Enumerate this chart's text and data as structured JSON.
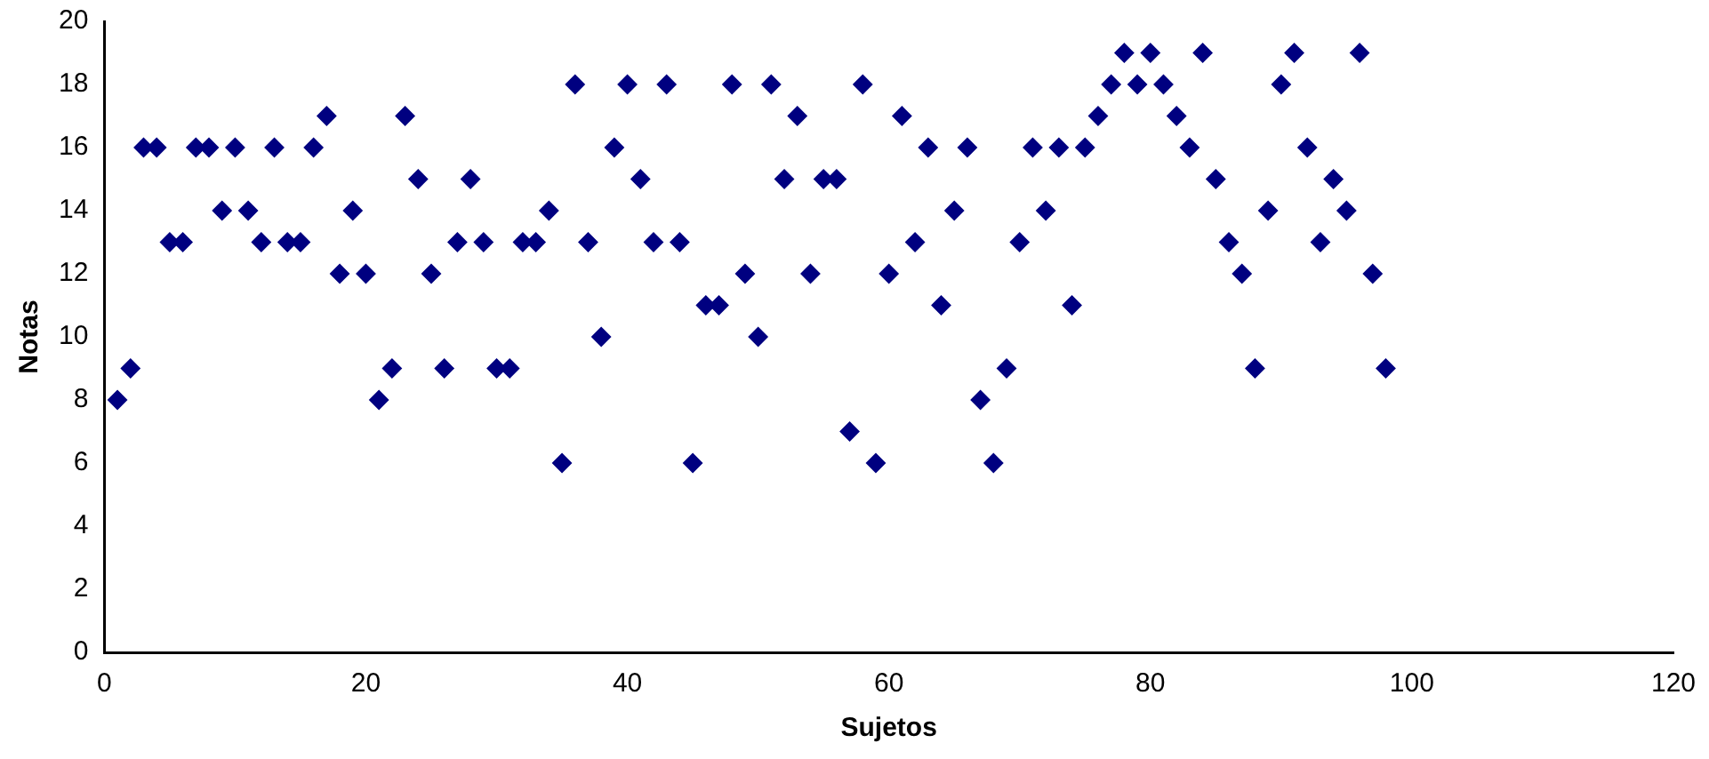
{
  "chart_data": {
    "type": "scatter",
    "xlabel": "Sujetos",
    "ylabel": "Notas",
    "marker": "diamond",
    "grid": false,
    "legend": false,
    "xlim": [
      0,
      120
    ],
    "xticks": [
      0,
      20,
      40,
      60,
      80,
      100,
      120
    ],
    "ylim": [
      0,
      20
    ],
    "yticks": [
      0,
      2,
      4,
      6,
      8,
      10,
      12,
      14,
      16,
      18,
      20
    ],
    "series": [
      {
        "color": "#000080",
        "x": [
          1,
          2,
          3,
          4,
          5,
          6,
          7,
          8,
          9,
          10,
          11,
          12,
          13,
          14,
          15,
          16,
          17,
          18,
          19,
          20,
          21,
          22,
          23,
          24,
          25,
          26,
          27,
          28,
          29,
          30,
          31,
          32,
          33,
          34,
          35,
          36,
          37,
          38,
          39,
          40,
          41,
          42,
          43,
          44,
          45,
          46,
          47,
          48,
          49,
          50,
          51,
          52,
          53,
          54,
          55,
          56,
          57,
          58,
          59,
          60,
          61,
          62,
          63,
          64,
          65,
          66,
          67,
          68,
          69,
          70,
          71,
          72,
          73,
          74,
          75,
          76,
          77,
          78,
          79,
          80,
          81,
          82,
          83,
          84,
          85,
          86,
          87,
          88,
          89,
          90,
          91,
          92,
          93,
          94,
          95,
          96,
          97,
          98
        ],
        "values": [
          8,
          9,
          16,
          16,
          13,
          13,
          16,
          16,
          14,
          16,
          14,
          13,
          16,
          13,
          13,
          16,
          17,
          12,
          14,
          12,
          8,
          9,
          17,
          15,
          12,
          9,
          13,
          15,
          13,
          9,
          9,
          13,
          13,
          14,
          6,
          18,
          13,
          10,
          16,
          18,
          15,
          13,
          18,
          13,
          6,
          11,
          11,
          18,
          12,
          10,
          18,
          15,
          17,
          12,
          15,
          15,
          7,
          18,
          6,
          12,
          17,
          13,
          16,
          11,
          14,
          16,
          8,
          6,
          9,
          13,
          16,
          14,
          16,
          11,
          16,
          17,
          18,
          19,
          18,
          19,
          18,
          17,
          16,
          19,
          15,
          13,
          12,
          9,
          14,
          18,
          19,
          16,
          13,
          15,
          14,
          19,
          12,
          9
        ]
      }
    ]
  }
}
